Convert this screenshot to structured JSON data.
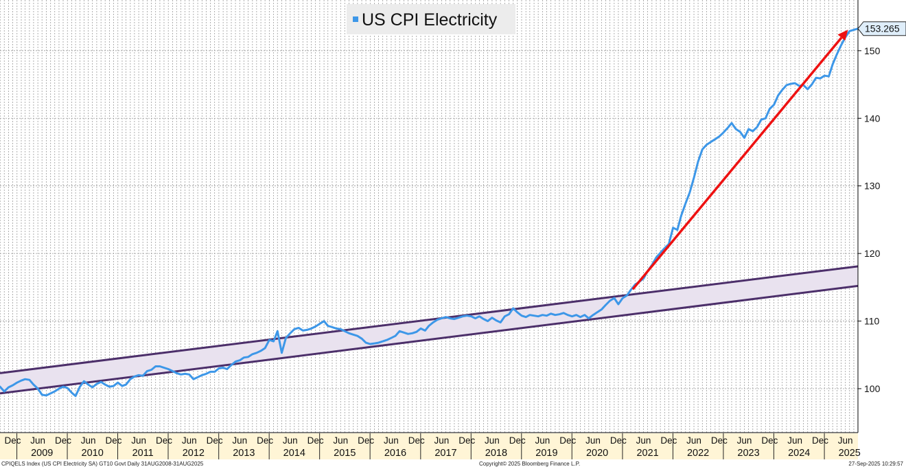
{
  "chart_data": {
    "type": "line",
    "title": "US CPI Electricity",
    "xlabel": "",
    "ylabel": "",
    "x_range": [
      "2008-08-31",
      "2025-08-31"
    ],
    "ylim": [
      93.5,
      157.5
    ],
    "y_ticks": [
      100,
      110,
      120,
      130,
      140,
      150
    ],
    "x_ticks": [
      {
        "label": "Dec",
        "date": "2008-12-01"
      },
      {
        "label": "Jun",
        "date": "2009-06-01"
      },
      {
        "label": "Dec",
        "date": "2009-12-01"
      },
      {
        "label": "Jun",
        "date": "2010-06-01"
      },
      {
        "label": "Dec",
        "date": "2010-12-01"
      },
      {
        "label": "Jun",
        "date": "2011-06-01"
      },
      {
        "label": "Dec",
        "date": "2011-12-01"
      },
      {
        "label": "Jun",
        "date": "2012-06-01"
      },
      {
        "label": "Dec",
        "date": "2012-12-01"
      },
      {
        "label": "Jun",
        "date": "2013-06-01"
      },
      {
        "label": "Dec",
        "date": "2013-12-01"
      },
      {
        "label": "Jun",
        "date": "2014-06-01"
      },
      {
        "label": "Dec",
        "date": "2014-12-01"
      },
      {
        "label": "Jun",
        "date": "2015-06-01"
      },
      {
        "label": "Dec",
        "date": "2015-12-01"
      },
      {
        "label": "Jun",
        "date": "2016-06-01"
      },
      {
        "label": "Dec",
        "date": "2016-12-01"
      },
      {
        "label": "Jun",
        "date": "2017-06-01"
      },
      {
        "label": "Dec",
        "date": "2017-12-01"
      },
      {
        "label": "Jun",
        "date": "2018-06-01"
      },
      {
        "label": "Dec",
        "date": "2018-12-01"
      },
      {
        "label": "Jun",
        "date": "2019-06-01"
      },
      {
        "label": "Dec",
        "date": "2019-12-01"
      },
      {
        "label": "Jun",
        "date": "2020-06-01"
      },
      {
        "label": "Dec",
        "date": "2020-12-01"
      },
      {
        "label": "Jun",
        "date": "2021-06-01"
      },
      {
        "label": "Dec",
        "date": "2021-12-01"
      },
      {
        "label": "Jun",
        "date": "2022-06-01"
      },
      {
        "label": "Dec",
        "date": "2022-12-01"
      },
      {
        "label": "Jun",
        "date": "2023-06-01"
      },
      {
        "label": "Dec",
        "date": "2023-12-01"
      },
      {
        "label": "Jun",
        "date": "2024-06-01"
      },
      {
        "label": "Dec",
        "date": "2024-12-01"
      },
      {
        "label": "Jun",
        "date": "2025-06-01"
      }
    ],
    "year_labels": [
      "2009",
      "2010",
      "2011",
      "2012",
      "2013",
      "2014",
      "2015",
      "2016",
      "2017",
      "2018",
      "2019",
      "2020",
      "2021",
      "2022",
      "2023",
      "2024",
      "2025"
    ],
    "grid": true,
    "legend_position": "top-center",
    "series": [
      {
        "name": "US CPI Electricity",
        "color": "#3d97e8",
        "points": [
          [
            "2008-08-31",
            100.3
          ],
          [
            "2008-10-01",
            99.6
          ],
          [
            "2008-11-01",
            100.2
          ],
          [
            "2008-12-01",
            100.5
          ],
          [
            "2009-01-01",
            100.9
          ],
          [
            "2009-02-01",
            101.2
          ],
          [
            "2009-03-01",
            101.4
          ],
          [
            "2009-04-01",
            101.3
          ],
          [
            "2009-05-01",
            100.6
          ],
          [
            "2009-06-01",
            100.0
          ],
          [
            "2009-07-01",
            99.1
          ],
          [
            "2009-08-01",
            99.0
          ],
          [
            "2009-09-01",
            99.3
          ],
          [
            "2009-10-01",
            99.6
          ],
          [
            "2009-11-01",
            100.0
          ],
          [
            "2009-12-01",
            100.3
          ],
          [
            "2010-01-01",
            100.1
          ],
          [
            "2010-02-01",
            99.4
          ],
          [
            "2010-03-01",
            98.9
          ],
          [
            "2010-04-01",
            100.3
          ],
          [
            "2010-05-01",
            101.1
          ],
          [
            "2010-06-01",
            100.6
          ],
          [
            "2010-07-01",
            100.2
          ],
          [
            "2010-08-01",
            100.7
          ],
          [
            "2010-09-01",
            101.0
          ],
          [
            "2010-10-01",
            100.6
          ],
          [
            "2010-11-01",
            100.3
          ],
          [
            "2010-12-01",
            100.4
          ],
          [
            "2011-01-01",
            100.9
          ],
          [
            "2011-02-01",
            100.4
          ],
          [
            "2011-03-01",
            100.6
          ],
          [
            "2011-04-01",
            101.4
          ],
          [
            "2011-05-01",
            101.8
          ],
          [
            "2011-06-01",
            102.0
          ],
          [
            "2011-07-01",
            101.9
          ],
          [
            "2011-08-01",
            102.6
          ],
          [
            "2011-09-01",
            102.8
          ],
          [
            "2011-10-01",
            103.3
          ],
          [
            "2011-11-01",
            103.3
          ],
          [
            "2011-12-01",
            103.1
          ],
          [
            "2012-01-01",
            102.9
          ],
          [
            "2012-02-01",
            102.6
          ],
          [
            "2012-03-01",
            102.3
          ],
          [
            "2012-04-01",
            102.1
          ],
          [
            "2012-05-01",
            102.2
          ],
          [
            "2012-06-01",
            102.1
          ],
          [
            "2012-07-01",
            101.4
          ],
          [
            "2012-08-01",
            101.7
          ],
          [
            "2012-09-01",
            102.0
          ],
          [
            "2012-10-01",
            102.2
          ],
          [
            "2012-11-01",
            102.5
          ],
          [
            "2012-12-01",
            102.5
          ],
          [
            "2013-01-01",
            103.0
          ],
          [
            "2013-02-01",
            103.1
          ],
          [
            "2013-03-01",
            102.9
          ],
          [
            "2013-04-01",
            103.5
          ],
          [
            "2013-05-01",
            104.0
          ],
          [
            "2013-06-01",
            104.2
          ],
          [
            "2013-07-01",
            104.6
          ],
          [
            "2013-08-01",
            104.7
          ],
          [
            "2013-09-01",
            105.1
          ],
          [
            "2013-10-01",
            105.3
          ],
          [
            "2013-11-01",
            105.6
          ],
          [
            "2013-12-01",
            106.0
          ],
          [
            "2014-01-01",
            107.2
          ],
          [
            "2014-02-01",
            107.0
          ],
          [
            "2014-03-01",
            108.5
          ],
          [
            "2014-04-01",
            105.3
          ],
          [
            "2014-05-01",
            107.5
          ],
          [
            "2014-06-01",
            108.2
          ],
          [
            "2014-07-01",
            108.8
          ],
          [
            "2014-08-01",
            109.0
          ],
          [
            "2014-09-01",
            108.6
          ],
          [
            "2014-10-01",
            108.7
          ],
          [
            "2014-11-01",
            108.9
          ],
          [
            "2014-12-01",
            109.2
          ],
          [
            "2015-01-01",
            109.6
          ],
          [
            "2015-02-01",
            110.0
          ],
          [
            "2015-03-01",
            109.3
          ],
          [
            "2015-04-01",
            109.1
          ],
          [
            "2015-05-01",
            108.9
          ],
          [
            "2015-06-01",
            108.8
          ],
          [
            "2015-07-01",
            108.5
          ],
          [
            "2015-08-01",
            108.2
          ],
          [
            "2015-09-01",
            108.0
          ],
          [
            "2015-10-01",
            107.8
          ],
          [
            "2015-11-01",
            107.4
          ],
          [
            "2015-12-01",
            106.8
          ],
          [
            "2016-01-01",
            106.6
          ],
          [
            "2016-02-01",
            106.7
          ],
          [
            "2016-03-01",
            106.8
          ],
          [
            "2016-04-01",
            107.0
          ],
          [
            "2016-05-01",
            107.2
          ],
          [
            "2016-06-01",
            107.5
          ],
          [
            "2016-07-01",
            107.8
          ],
          [
            "2016-08-01",
            108.5
          ],
          [
            "2016-09-01",
            108.3
          ],
          [
            "2016-10-01",
            108.1
          ],
          [
            "2016-11-01",
            108.2
          ],
          [
            "2016-12-01",
            108.4
          ],
          [
            "2017-01-01",
            108.9
          ],
          [
            "2017-02-01",
            108.6
          ],
          [
            "2017-03-01",
            109.3
          ],
          [
            "2017-04-01",
            109.8
          ],
          [
            "2017-05-01",
            110.2
          ],
          [
            "2017-06-01",
            110.4
          ],
          [
            "2017-07-01",
            110.6
          ],
          [
            "2017-08-01",
            110.4
          ],
          [
            "2017-09-01",
            110.3
          ],
          [
            "2017-10-01",
            110.5
          ],
          [
            "2017-11-01",
            110.7
          ],
          [
            "2017-12-01",
            110.8
          ],
          [
            "2018-01-01",
            110.7
          ],
          [
            "2018-02-01",
            110.4
          ],
          [
            "2018-03-01",
            110.7
          ],
          [
            "2018-04-01",
            110.3
          ],
          [
            "2018-05-01",
            110.0
          ],
          [
            "2018-06-01",
            110.5
          ],
          [
            "2018-07-01",
            110.1
          ],
          [
            "2018-08-01",
            109.8
          ],
          [
            "2018-09-01",
            110.7
          ],
          [
            "2018-10-01",
            111.0
          ],
          [
            "2018-11-01",
            111.9
          ],
          [
            "2018-12-01",
            111.3
          ],
          [
            "2019-01-01",
            110.8
          ],
          [
            "2019-02-01",
            110.6
          ],
          [
            "2019-03-01",
            110.9
          ],
          [
            "2019-04-01",
            110.8
          ],
          [
            "2019-05-01",
            110.7
          ],
          [
            "2019-06-01",
            110.9
          ],
          [
            "2019-07-01",
            110.8
          ],
          [
            "2019-08-01",
            111.1
          ],
          [
            "2019-09-01",
            110.9
          ],
          [
            "2019-10-01",
            111.0
          ],
          [
            "2019-11-01",
            111.2
          ],
          [
            "2019-12-01",
            110.9
          ],
          [
            "2020-01-01",
            110.7
          ],
          [
            "2020-02-01",
            110.9
          ],
          [
            "2020-03-01",
            110.6
          ],
          [
            "2020-04-01",
            110.9
          ],
          [
            "2020-05-01",
            110.4
          ],
          [
            "2020-06-01",
            110.9
          ],
          [
            "2020-07-01",
            111.3
          ],
          [
            "2020-08-01",
            111.7
          ],
          [
            "2020-09-01",
            112.4
          ],
          [
            "2020-10-01",
            113.0
          ],
          [
            "2020-11-01",
            113.4
          ],
          [
            "2020-12-01",
            112.5
          ],
          [
            "2021-01-01",
            113.4
          ],
          [
            "2021-02-01",
            113.8
          ],
          [
            "2021-03-01",
            114.6
          ],
          [
            "2021-04-01",
            115.4
          ],
          [
            "2021-05-01",
            115.8
          ],
          [
            "2021-06-01",
            116.3
          ],
          [
            "2021-07-01",
            117.4
          ],
          [
            "2021-08-01",
            118.3
          ],
          [
            "2021-09-01",
            119.4
          ],
          [
            "2021-10-01",
            120.1
          ],
          [
            "2021-11-01",
            120.8
          ],
          [
            "2021-12-01",
            121.4
          ],
          [
            "2022-01-01",
            123.8
          ],
          [
            "2022-02-01",
            123.5
          ],
          [
            "2022-03-01",
            125.6
          ],
          [
            "2022-04-01",
            127.4
          ],
          [
            "2022-05-01",
            129.0
          ],
          [
            "2022-06-01",
            131.2
          ],
          [
            "2022-07-01",
            133.6
          ],
          [
            "2022-08-01",
            135.4
          ],
          [
            "2022-09-01",
            136.1
          ],
          [
            "2022-10-01",
            136.5
          ],
          [
            "2022-11-01",
            136.9
          ],
          [
            "2022-12-01",
            137.3
          ],
          [
            "2023-01-01",
            137.9
          ],
          [
            "2023-02-01",
            138.6
          ],
          [
            "2023-03-01",
            139.3
          ],
          [
            "2023-04-01",
            138.4
          ],
          [
            "2023-05-01",
            138.0
          ],
          [
            "2023-06-01",
            137.1
          ],
          [
            "2023-07-01",
            138.4
          ],
          [
            "2023-08-01",
            138.1
          ],
          [
            "2023-09-01",
            138.7
          ],
          [
            "2023-10-01",
            139.8
          ],
          [
            "2023-11-01",
            140.0
          ],
          [
            "2023-12-01",
            141.4
          ],
          [
            "2024-01-01",
            142.0
          ],
          [
            "2024-02-01",
            143.4
          ],
          [
            "2024-03-01",
            144.2
          ],
          [
            "2024-04-01",
            144.9
          ],
          [
            "2024-05-01",
            145.1
          ],
          [
            "2024-06-01",
            145.2
          ],
          [
            "2024-07-01",
            144.8
          ],
          [
            "2024-08-01",
            144.9
          ],
          [
            "2024-09-01",
            144.3
          ],
          [
            "2024-10-01",
            145.0
          ],
          [
            "2024-11-01",
            146.0
          ],
          [
            "2024-12-01",
            145.9
          ],
          [
            "2025-01-01",
            146.3
          ],
          [
            "2025-02-01",
            146.2
          ],
          [
            "2025-03-01",
            148.0
          ],
          [
            "2025-04-01",
            149.5
          ],
          [
            "2025-05-01",
            150.8
          ],
          [
            "2025-06-01",
            152.0
          ],
          [
            "2025-07-01",
            152.9
          ],
          [
            "2025-08-31",
            153.265
          ]
        ]
      }
    ],
    "last_value_label": "153.265",
    "channel": {
      "fill": "#e9e2ef",
      "edge_color": "#4c2f6a",
      "upper": [
        [
          "2008-08-31",
          102.3
        ],
        [
          "2025-08-31",
          118.1
        ]
      ],
      "lower": [
        [
          "2008-08-31",
          99.3
        ],
        [
          "2025-08-31",
          115.2
        ]
      ]
    },
    "arrow": {
      "color": "#ee1111",
      "from": [
        "2021-03-15",
        114.7
      ],
      "to": [
        "2025-06-20",
        153.1
      ]
    }
  },
  "footer": {
    "left": "CPIQELS Index (US CPI Electricity SA) GT10  Govt  Daily 31AUG2008-31AUG2025",
    "center": "Copyright© 2025 Bloomberg Finance L.P.",
    "right": "27-Sep-2025 10:29:57"
  }
}
